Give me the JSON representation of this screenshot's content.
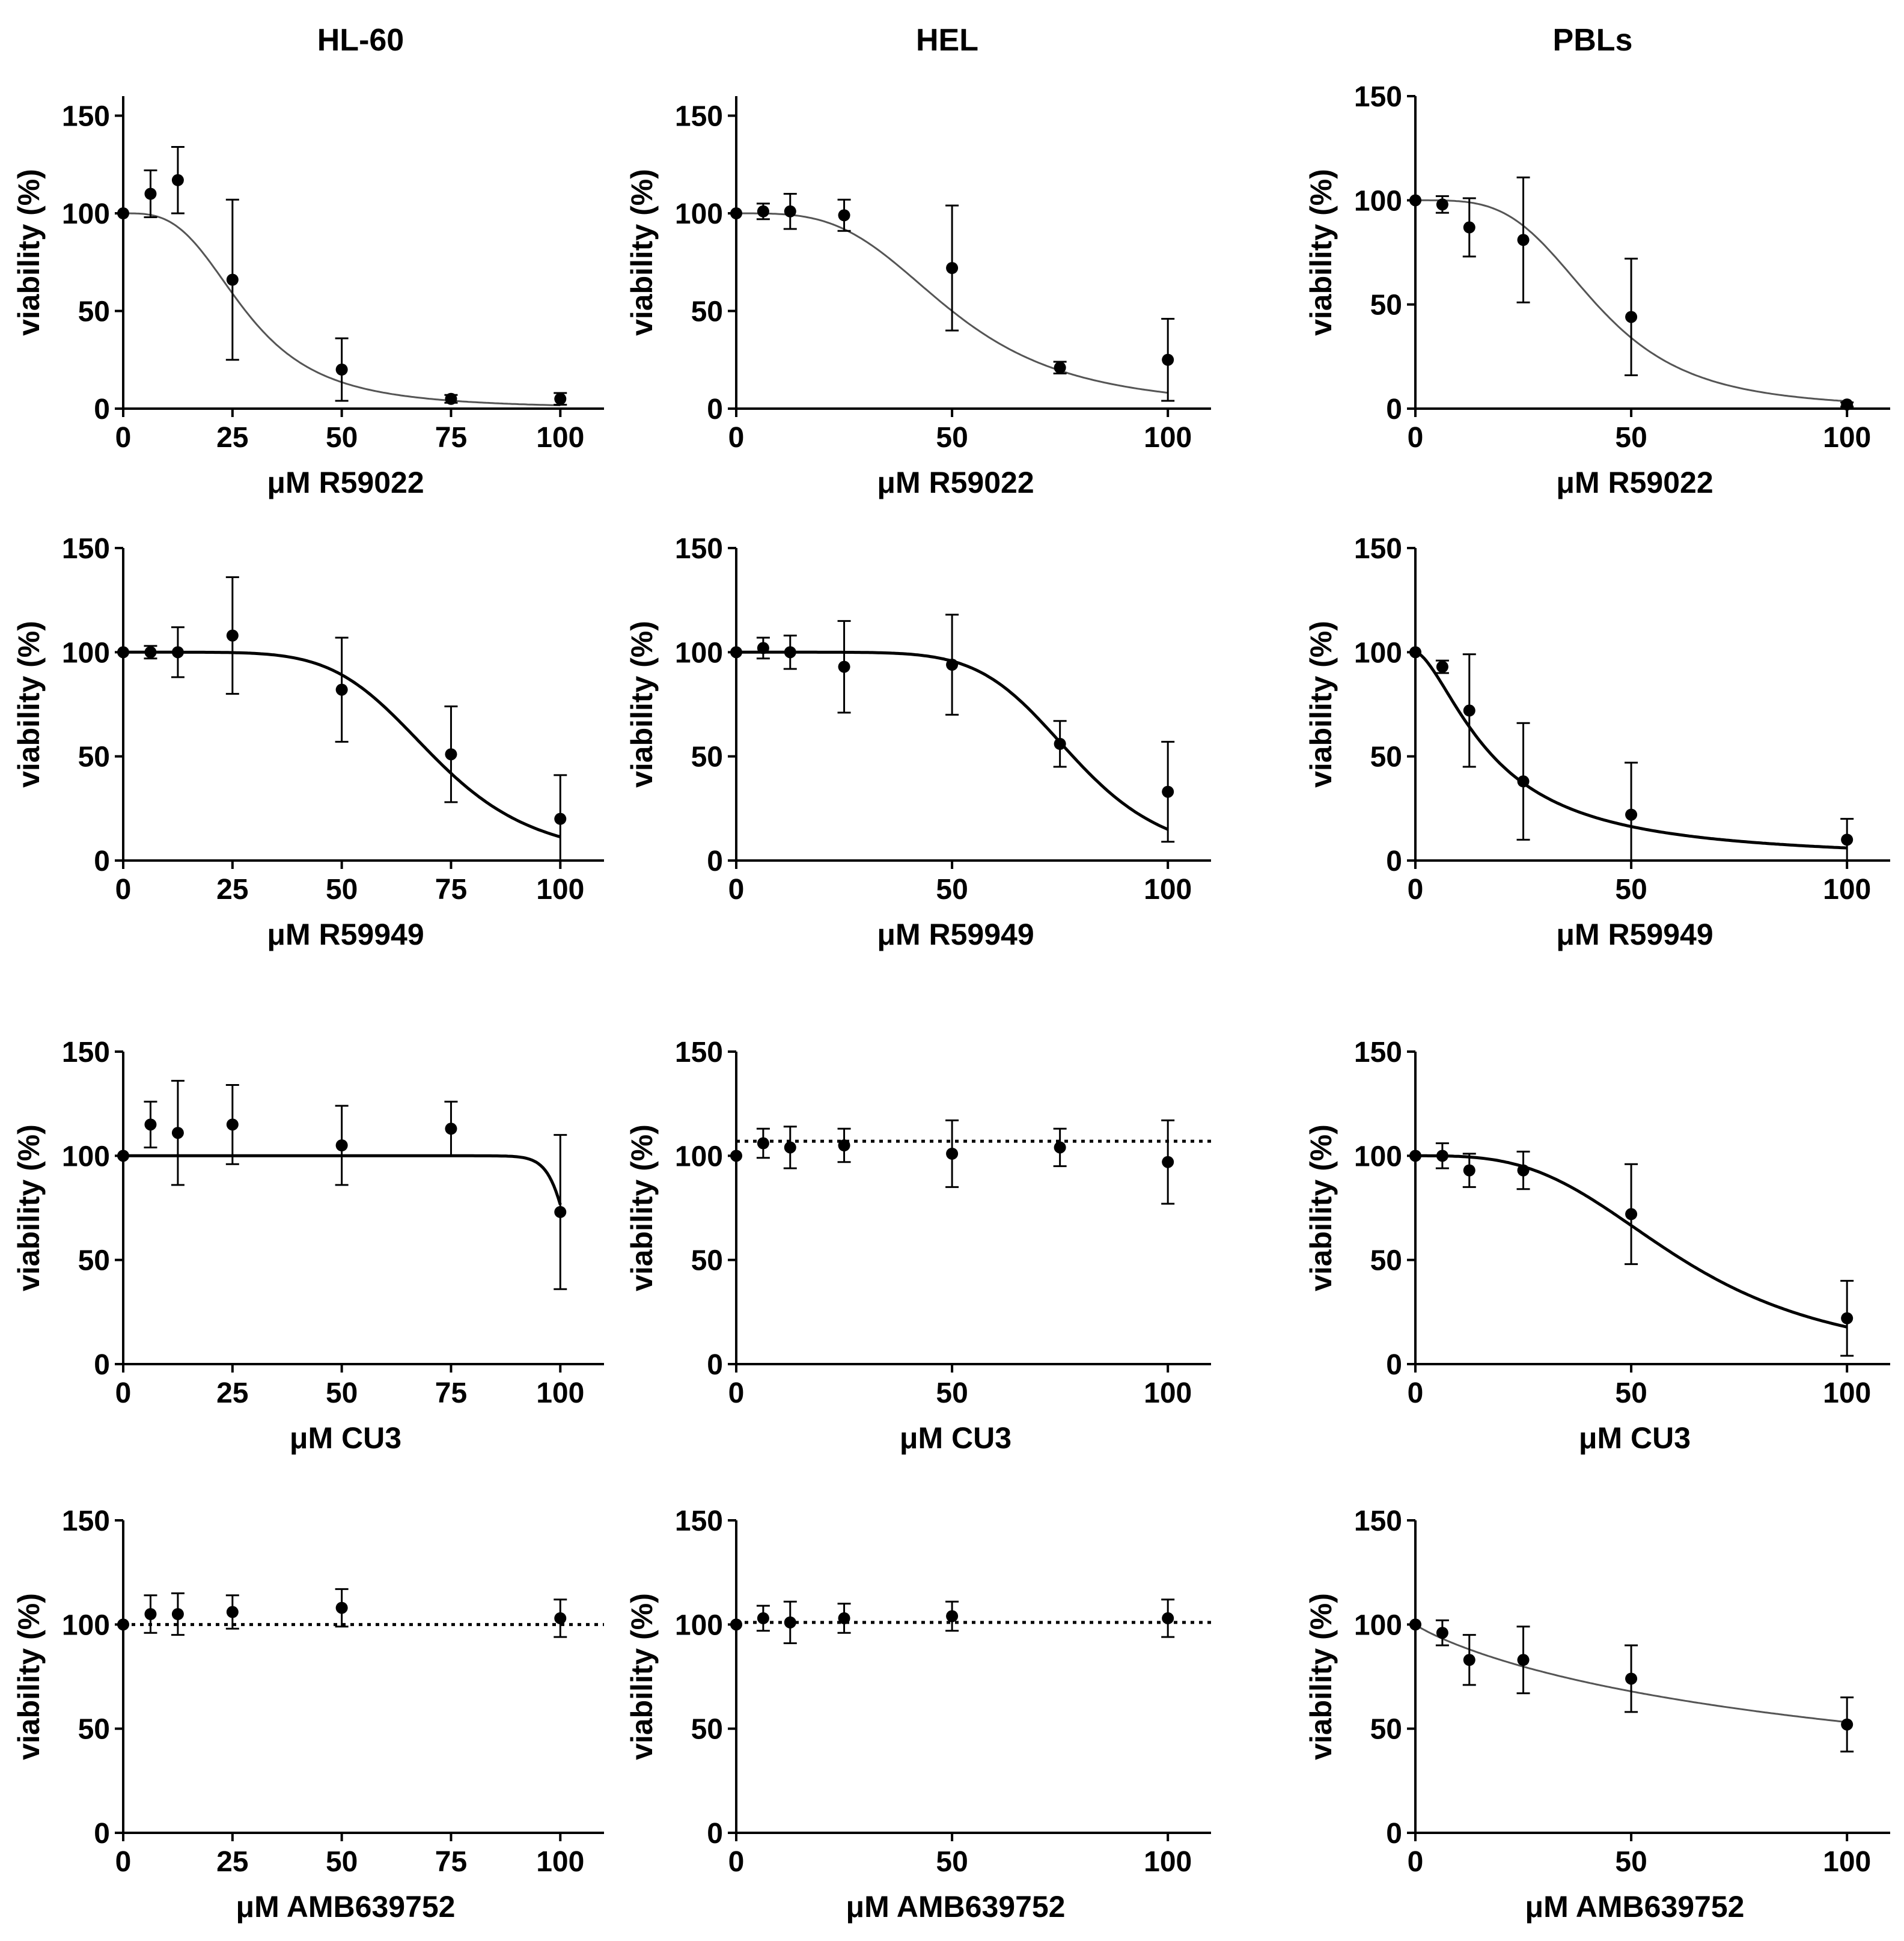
{
  "figure": {
    "columns": [
      "HL-60",
      "HEL",
      "PBLs"
    ]
  },
  "chart_data": [
    {
      "type": "scatter",
      "title": "HL-60",
      "xlabel": "μM R59022",
      "ylabel": "viability (%)",
      "xlim": [
        0,
        110
      ],
      "ylim": [
        0,
        160
      ],
      "xticks": [
        0,
        25,
        50,
        75,
        100
      ],
      "yticks": [
        0,
        50,
        100,
        150
      ],
      "points": [
        {
          "x": 0,
          "y": 100,
          "err": 0
        },
        {
          "x": 6.25,
          "y": 110,
          "err": 12
        },
        {
          "x": 12.5,
          "y": 117,
          "err": 17
        },
        {
          "x": 25,
          "y": 66,
          "err": 41
        },
        {
          "x": 50,
          "y": 20,
          "err": 16
        },
        {
          "x": 75,
          "y": 5,
          "err": 2
        },
        {
          "x": 100,
          "y": 5,
          "err": 3
        }
      ],
      "fit": {
        "style": "thin",
        "ic50": 28,
        "hill": 3.2
      }
    },
    {
      "type": "scatter",
      "title": "HEL",
      "xlabel": "μM R59022",
      "ylabel": "viability (%)",
      "xlim": [
        0,
        110
      ],
      "ylim": [
        0,
        160
      ],
      "xticks": [
        0,
        50,
        100
      ],
      "yticks": [
        0,
        50,
        100,
        150
      ],
      "points": [
        {
          "x": 0,
          "y": 100,
          "err": 0
        },
        {
          "x": 6.25,
          "y": 101,
          "err": 4
        },
        {
          "x": 12.5,
          "y": 101,
          "err": 9
        },
        {
          "x": 25,
          "y": 99,
          "err": 8
        },
        {
          "x": 50,
          "y": 72,
          "err": 32
        },
        {
          "x": 75,
          "y": 21,
          "err": 3
        },
        {
          "x": 100,
          "y": 25,
          "err": 21
        }
      ],
      "fit": {
        "style": "thin",
        "ic50": 50,
        "hill": 3.5
      }
    },
    {
      "type": "scatter",
      "title": "PBLs",
      "xlabel": "μM R59022",
      "ylabel": "viability (%)",
      "xlim": [
        0,
        110
      ],
      "ylim": [
        0,
        150
      ],
      "xticks": [
        0,
        50,
        100
      ],
      "yticks": [
        0,
        50,
        100,
        150
      ],
      "points": [
        {
          "x": 0,
          "y": 100,
          "err": 0
        },
        {
          "x": 6.25,
          "y": 98,
          "err": 4
        },
        {
          "x": 12.5,
          "y": 87,
          "err": 14
        },
        {
          "x": 25,
          "y": 81,
          "err": 30
        },
        {
          "x": 50,
          "y": 44,
          "err": 28
        },
        {
          "x": 100,
          "y": 2,
          "err": 1
        }
      ],
      "fit": {
        "style": "thin",
        "ic50": 42,
        "hill": 3.8
      }
    },
    {
      "type": "scatter",
      "title": "",
      "xlabel": "μM R59949",
      "ylabel": "viability (%)",
      "xlim": [
        0,
        110
      ],
      "ylim": [
        0,
        150
      ],
      "xticks": [
        0,
        25,
        50,
        75,
        100
      ],
      "yticks": [
        0,
        50,
        100,
        150
      ],
      "points": [
        {
          "x": 0,
          "y": 100,
          "err": 0
        },
        {
          "x": 6.25,
          "y": 100,
          "err": 3
        },
        {
          "x": 12.5,
          "y": 100,
          "err": 12
        },
        {
          "x": 25,
          "y": 108,
          "err": 28
        },
        {
          "x": 50,
          "y": 82,
          "err": 25
        },
        {
          "x": 75,
          "y": 51,
          "err": 23
        },
        {
          "x": 100,
          "y": 20,
          "err": 21
        }
      ],
      "fit": {
        "style": "thick",
        "ic50": 71,
        "hill": 6
      }
    },
    {
      "type": "scatter",
      "title": "",
      "xlabel": "μM R59949",
      "ylabel": "viability (%)",
      "xlim": [
        0,
        110
      ],
      "ylim": [
        0,
        150
      ],
      "xticks": [
        0,
        50,
        100
      ],
      "yticks": [
        0,
        50,
        100,
        150
      ],
      "points": [
        {
          "x": 0,
          "y": 100,
          "err": 0
        },
        {
          "x": 6.25,
          "y": 102,
          "err": 5
        },
        {
          "x": 12.5,
          "y": 100,
          "err": 8
        },
        {
          "x": 25,
          "y": 93,
          "err": 22
        },
        {
          "x": 50,
          "y": 94,
          "err": 24
        },
        {
          "x": 75,
          "y": 56,
          "err": 11
        },
        {
          "x": 100,
          "y": 33,
          "err": 24
        }
      ],
      "fit": {
        "style": "thick",
        "ic50": 78,
        "hill": 7
      }
    },
    {
      "type": "scatter",
      "title": "",
      "xlabel": "μM R59949",
      "ylabel": "viability (%)",
      "xlim": [
        0,
        110
      ],
      "ylim": [
        0,
        150
      ],
      "xticks": [
        0,
        50,
        100
      ],
      "yticks": [
        0,
        50,
        100,
        150
      ],
      "points": [
        {
          "x": 0,
          "y": 100,
          "err": 0
        },
        {
          "x": 6.25,
          "y": 93,
          "err": 3
        },
        {
          "x": 12.5,
          "y": 72,
          "err": 27
        },
        {
          "x": 25,
          "y": 38,
          "err": 28
        },
        {
          "x": 50,
          "y": 22,
          "err": 25
        },
        {
          "x": 100,
          "y": 10,
          "err": 10
        }
      ],
      "fit": {
        "style": "thick",
        "ic50": 18,
        "hill": 1.6
      }
    },
    {
      "type": "scatter",
      "title": "",
      "xlabel": "μM CU3",
      "ylabel": "viability (%)",
      "xlim": [
        0,
        110
      ],
      "ylim": [
        0,
        150
      ],
      "xticks": [
        0,
        25,
        50,
        75,
        100
      ],
      "yticks": [
        0,
        50,
        100,
        150
      ],
      "points": [
        {
          "x": 0,
          "y": 100,
          "err": 0
        },
        {
          "x": 6.25,
          "y": 115,
          "err": 11
        },
        {
          "x": 12.5,
          "y": 111,
          "err": 25
        },
        {
          "x": 25,
          "y": 115,
          "err": 19
        },
        {
          "x": 50,
          "y": 105,
          "err": 19
        },
        {
          "x": 75,
          "y": 113,
          "err": 13
        },
        {
          "x": 100,
          "y": 73,
          "err": 37
        }
      ],
      "fit": {
        "style": "thick",
        "ic50": 103,
        "hill": 40
      }
    },
    {
      "type": "scatter",
      "title": "",
      "xlabel": "μM CU3",
      "ylabel": "viability (%)",
      "xlim": [
        0,
        110
      ],
      "ylim": [
        0,
        150
      ],
      "xticks": [
        0,
        50,
        100
      ],
      "yticks": [
        0,
        50,
        100,
        150
      ],
      "points": [
        {
          "x": 0,
          "y": 100,
          "err": 0
        },
        {
          "x": 6.25,
          "y": 106,
          "err": 7
        },
        {
          "x": 12.5,
          "y": 104,
          "err": 10
        },
        {
          "x": 25,
          "y": 105,
          "err": 8
        },
        {
          "x": 50,
          "y": 101,
          "err": 16
        },
        {
          "x": 75,
          "y": 104,
          "err": 9
        },
        {
          "x": 100,
          "y": 97,
          "err": 20
        }
      ],
      "fit": {
        "style": "dotted",
        "constant": 107
      }
    },
    {
      "type": "scatter",
      "title": "",
      "xlabel": "μM CU3",
      "ylabel": "viability (%)",
      "xlim": [
        0,
        110
      ],
      "ylim": [
        0,
        150
      ],
      "xticks": [
        0,
        50,
        100
      ],
      "yticks": [
        0,
        50,
        100,
        150
      ],
      "points": [
        {
          "x": 0,
          "y": 100,
          "err": 0
        },
        {
          "x": 6.25,
          "y": 100,
          "err": 6
        },
        {
          "x": 12.5,
          "y": 93,
          "err": 8
        },
        {
          "x": 25,
          "y": 93,
          "err": 9
        },
        {
          "x": 50,
          "y": 72,
          "err": 24
        },
        {
          "x": 100,
          "y": 22,
          "err": 18
        }
      ],
      "fit": {
        "style": "thick",
        "ic50": 62,
        "hill": 3.2
      }
    },
    {
      "type": "scatter",
      "title": "",
      "xlabel": "μM AMB639752",
      "ylabel": "viability (%)",
      "xlim": [
        0,
        110
      ],
      "ylim": [
        0,
        150
      ],
      "xticks": [
        0,
        25,
        50,
        75,
        100
      ],
      "yticks": [
        0,
        50,
        100,
        150
      ],
      "points": [
        {
          "x": 0,
          "y": 100,
          "err": 0
        },
        {
          "x": 6.25,
          "y": 105,
          "err": 9
        },
        {
          "x": 12.5,
          "y": 105,
          "err": 10
        },
        {
          "x": 25,
          "y": 106,
          "err": 8
        },
        {
          "x": 50,
          "y": 108,
          "err": 9
        },
        {
          "x": 100,
          "y": 103,
          "err": 9
        }
      ],
      "fit": {
        "style": "dotted",
        "constant": 100
      }
    },
    {
      "type": "scatter",
      "title": "",
      "xlabel": "μM AMB639752",
      "ylabel": "viability (%)",
      "xlim": [
        0,
        110
      ],
      "ylim": [
        0,
        150
      ],
      "xticks": [
        0,
        50,
        100
      ],
      "yticks": [
        0,
        50,
        100,
        150
      ],
      "points": [
        {
          "x": 0,
          "y": 100,
          "err": 0
        },
        {
          "x": 6.25,
          "y": 103,
          "err": 6
        },
        {
          "x": 12.5,
          "y": 101,
          "err": 10
        },
        {
          "x": 25,
          "y": 103,
          "err": 7
        },
        {
          "x": 50,
          "y": 104,
          "err": 7
        },
        {
          "x": 100,
          "y": 103,
          "err": 9
        }
      ],
      "fit": {
        "style": "dotted",
        "constant": 101
      }
    },
    {
      "type": "scatter",
      "title": "",
      "xlabel": "μM AMB639752",
      "ylabel": "viability (%)",
      "xlim": [
        0,
        110
      ],
      "ylim": [
        0,
        150
      ],
      "xticks": [
        0,
        50,
        100
      ],
      "yticks": [
        0,
        50,
        100,
        150
      ],
      "points": [
        {
          "x": 0,
          "y": 100,
          "err": 0
        },
        {
          "x": 6.25,
          "y": 96,
          "err": 6
        },
        {
          "x": 12.5,
          "y": 83,
          "err": 12
        },
        {
          "x": 25,
          "y": 83,
          "err": 16
        },
        {
          "x": 50,
          "y": 74,
          "err": 16
        },
        {
          "x": 100,
          "y": 52,
          "err": 13
        }
      ],
      "fit": {
        "style": "thin",
        "ic50": 115,
        "hill": 0.9
      }
    }
  ]
}
